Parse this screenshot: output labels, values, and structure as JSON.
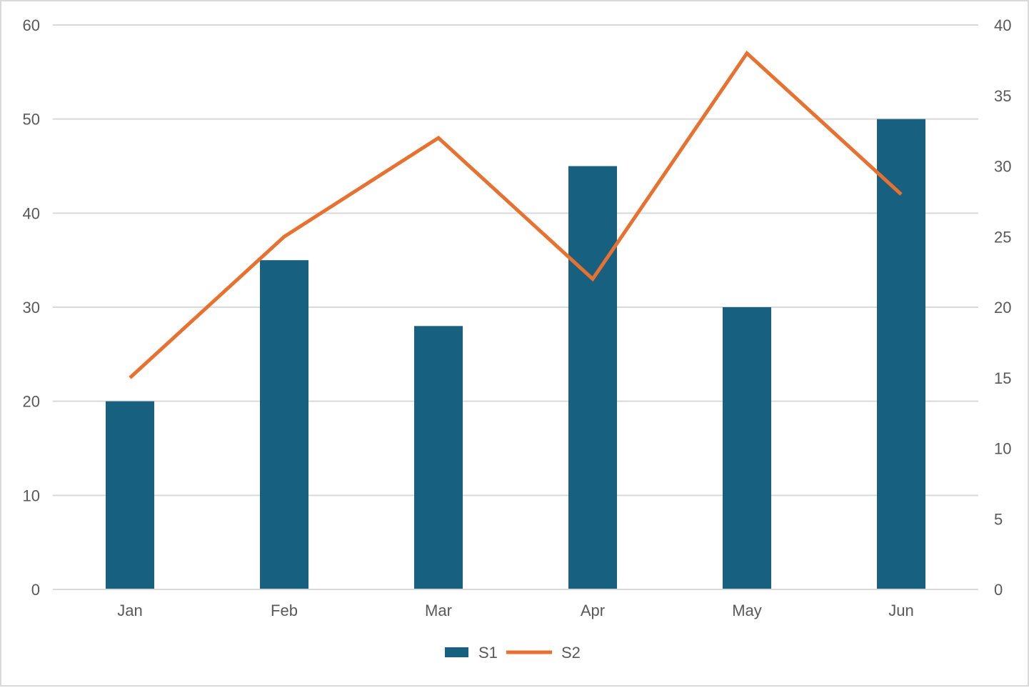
{
  "chart_data": {
    "type": "bar",
    "categories": [
      "Jan",
      "Feb",
      "Mar",
      "Apr",
      "May",
      "Jun"
    ],
    "series": [
      {
        "name": "S1",
        "type": "bar",
        "axis": "left",
        "values": [
          20,
          35,
          28,
          45,
          30,
          50
        ]
      },
      {
        "name": "S2",
        "type": "line",
        "axis": "right",
        "values": [
          15,
          25,
          32,
          22,
          38,
          28
        ]
      }
    ],
    "y_left": {
      "min": 0,
      "max": 60,
      "step": 10,
      "ticks": [
        "0",
        "10",
        "20",
        "30",
        "40",
        "50",
        "60"
      ]
    },
    "y_right": {
      "min": 0,
      "max": 40,
      "step": 5,
      "ticks": [
        "0",
        "5",
        "10",
        "15",
        "20",
        "25",
        "30",
        "35",
        "40"
      ]
    },
    "grid": true,
    "legend_position": "bottom",
    "colors": {
      "S1": "#17607f",
      "S2": "#e8712f"
    }
  }
}
